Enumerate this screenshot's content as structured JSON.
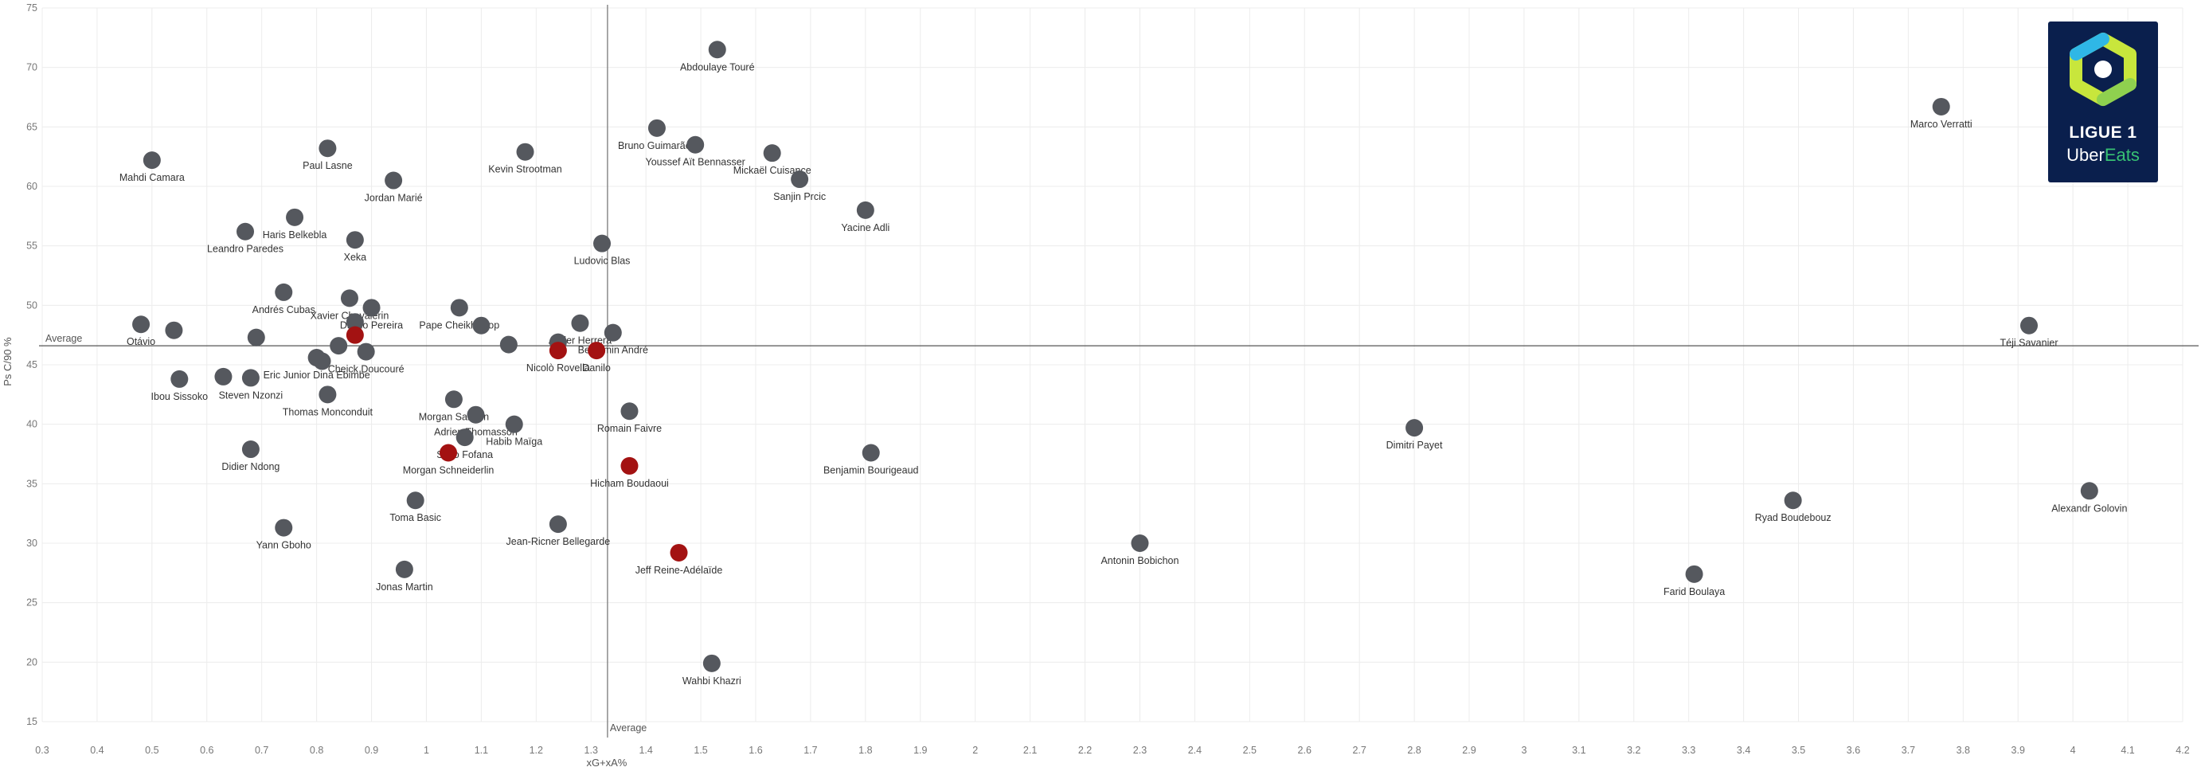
{
  "chart_data": {
    "type": "scatter",
    "xlabel": "xG+xA%",
    "ylabel": "Ps C/90 %",
    "xlim": [
      0.3,
      4.2
    ],
    "ylim": [
      15,
      75
    ],
    "x_ticks": [
      0.3,
      0.4,
      0.5,
      0.6,
      0.7,
      0.8,
      0.9,
      1.0,
      1.1,
      1.2,
      1.3,
      1.4,
      1.5,
      1.6,
      1.7,
      1.8,
      1.9,
      2.0,
      2.1,
      2.2,
      2.3,
      2.4,
      2.5,
      2.6,
      2.7,
      2.8,
      2.9,
      3.0,
      3.1,
      3.2,
      3.3,
      3.4,
      3.5,
      3.6,
      3.7,
      3.8,
      3.9,
      4.0,
      4.1,
      4.2
    ],
    "y_ticks": [
      15,
      20,
      25,
      30,
      35,
      40,
      45,
      50,
      55,
      60,
      65,
      70,
      75
    ],
    "grid": true,
    "reference_lines": {
      "x_average": 1.33,
      "y_average": 46.6,
      "label": "Average"
    },
    "colors": {
      "default": "#55585e",
      "highlight": "#a31212"
    },
    "points": [
      {
        "name": "Abdoulaye Touré",
        "x": 1.53,
        "y": 71.5,
        "hl": false
      },
      {
        "name": "Marco Verratti",
        "x": 3.76,
        "y": 66.7,
        "hl": false
      },
      {
        "name": "Bruno Guimarães",
        "x": 1.42,
        "y": 64.9,
        "hl": false
      },
      {
        "name": "Youssef Aït Bennasser",
        "x": 1.49,
        "y": 63.5,
        "hl": false
      },
      {
        "name": "Paul Lasne",
        "x": 0.82,
        "y": 63.2,
        "hl": false
      },
      {
        "name": "Kevin Strootman",
        "x": 1.18,
        "y": 62.9,
        "hl": false
      },
      {
        "name": "Mickaël Cuisance",
        "x": 1.63,
        "y": 62.8,
        "hl": false
      },
      {
        "name": "Mahdi Camara",
        "x": 0.5,
        "y": 62.2,
        "hl": false
      },
      {
        "name": "Jordan Marié",
        "x": 0.94,
        "y": 60.5,
        "hl": false
      },
      {
        "name": "Sanjin Prcic",
        "x": 1.68,
        "y": 60.6,
        "hl": false
      },
      {
        "name": "Yacine Adli",
        "x": 1.8,
        "y": 58.0,
        "hl": false
      },
      {
        "name": "Haris Belkebla",
        "x": 0.76,
        "y": 57.4,
        "hl": false
      },
      {
        "name": "Leandro Paredes",
        "x": 0.67,
        "y": 56.2,
        "hl": false
      },
      {
        "name": "Xeka",
        "x": 0.87,
        "y": 55.5,
        "hl": false
      },
      {
        "name": "Ludovic Blas",
        "x": 1.32,
        "y": 55.2,
        "hl": false
      },
      {
        "name": "Andrés Cubas",
        "x": 0.74,
        "y": 51.1,
        "hl": false
      },
      {
        "name": "Xavier Chavalerin",
        "x": 0.86,
        "y": 50.6,
        "hl": false
      },
      {
        "name": "Danilo Pereira",
        "x": 0.9,
        "y": 49.8,
        "hl": false
      },
      {
        "name": "Pape Cheikh Diop",
        "x": 1.06,
        "y": 49.8,
        "hl": false
      },
      {
        "name": "Otávio",
        "x": 0.48,
        "y": 48.4,
        "hl": false
      },
      {
        "name": "",
        "x": 0.54,
        "y": 47.9,
        "hl": false
      },
      {
        "name": "",
        "x": 0.69,
        "y": 47.3,
        "hl": false
      },
      {
        "name": "",
        "x": 0.87,
        "y": 48.6,
        "hl": false
      },
      {
        "name": "",
        "x": 0.87,
        "y": 47.5,
        "hl": true
      },
      {
        "name": "",
        "x": 1.1,
        "y": 48.3,
        "hl": false
      },
      {
        "name": "Ander Herrera",
        "x": 1.28,
        "y": 48.5,
        "hl": false
      },
      {
        "name": "Benjamin André",
        "x": 1.34,
        "y": 47.7,
        "hl": false
      },
      {
        "name": "Téji Savanier",
        "x": 3.92,
        "y": 48.3,
        "hl": false
      },
      {
        "name": "",
        "x": 0.84,
        "y": 46.6,
        "hl": false
      },
      {
        "name": "",
        "x": 1.15,
        "y": 46.7,
        "hl": false
      },
      {
        "name": "",
        "x": 1.24,
        "y": 46.9,
        "hl": false
      },
      {
        "name": "Nicolò Rovella",
        "x": 1.24,
        "y": 46.2,
        "hl": true
      },
      {
        "name": "Danilo",
        "x": 1.31,
        "y": 46.2,
        "hl": true
      },
      {
        "name": "Cheick Doucouré",
        "x": 0.89,
        "y": 46.1,
        "hl": false
      },
      {
        "name": "Eric Junior Dina Ebimbe",
        "x": 0.8,
        "y": 45.6,
        "hl": false
      },
      {
        "name": "",
        "x": 0.81,
        "y": 45.3,
        "hl": false
      },
      {
        "name": "Ibou Sissoko",
        "x": 0.55,
        "y": 43.8,
        "hl": false
      },
      {
        "name": "",
        "x": 0.63,
        "y": 44.0,
        "hl": false
      },
      {
        "name": "Steven Nzonzi",
        "x": 0.68,
        "y": 43.9,
        "hl": false
      },
      {
        "name": "Thomas Monconduit",
        "x": 0.82,
        "y": 42.5,
        "hl": false
      },
      {
        "name": "Morgan Sanson",
        "x": 1.05,
        "y": 42.1,
        "hl": false
      },
      {
        "name": "Adrien Thomasson",
        "x": 1.09,
        "y": 40.8,
        "hl": false
      },
      {
        "name": "Romain Faivre",
        "x": 1.37,
        "y": 41.1,
        "hl": false
      },
      {
        "name": "Habib Maïga",
        "x": 1.16,
        "y": 40.0,
        "hl": false
      },
      {
        "name": "Dimitri Payet",
        "x": 2.8,
        "y": 39.7,
        "hl": false
      },
      {
        "name": "Sèko Fofana",
        "x": 1.07,
        "y": 38.9,
        "hl": false
      },
      {
        "name": "Didier Ndong",
        "x": 0.68,
        "y": 37.9,
        "hl": false
      },
      {
        "name": "Morgan Schneiderlin",
        "x": 1.04,
        "y": 37.6,
        "hl": true
      },
      {
        "name": "Benjamin Bourigeaud",
        "x": 1.81,
        "y": 37.6,
        "hl": false
      },
      {
        "name": "Hicham Boudaoui",
        "x": 1.37,
        "y": 36.5,
        "hl": true
      },
      {
        "name": "Toma Basic",
        "x": 0.98,
        "y": 33.6,
        "hl": false
      },
      {
        "name": "Ryad Boudebouz",
        "x": 3.49,
        "y": 33.6,
        "hl": false
      },
      {
        "name": "Alexandr Golovin",
        "x": 4.03,
        "y": 34.4,
        "hl": false
      },
      {
        "name": "Yann Gboho",
        "x": 0.74,
        "y": 31.3,
        "hl": false
      },
      {
        "name": "Jean-Ricner Bellegarde",
        "x": 1.24,
        "y": 31.6,
        "hl": false
      },
      {
        "name": "Antonin Bobichon",
        "x": 2.3,
        "y": 30.0,
        "hl": false
      },
      {
        "name": "Jeff Reine-Adélaïde",
        "x": 1.46,
        "y": 29.2,
        "hl": true
      },
      {
        "name": "Jonas Martin",
        "x": 0.96,
        "y": 27.8,
        "hl": false
      },
      {
        "name": "Farid Boulaya",
        "x": 3.31,
        "y": 27.4,
        "hl": false
      },
      {
        "name": "Wahbi Khazri",
        "x": 1.52,
        "y": 19.9,
        "hl": false
      }
    ]
  },
  "logo": {
    "line1": "LIGUE 1",
    "line2a": "Uber",
    "line2b": "Eats"
  }
}
